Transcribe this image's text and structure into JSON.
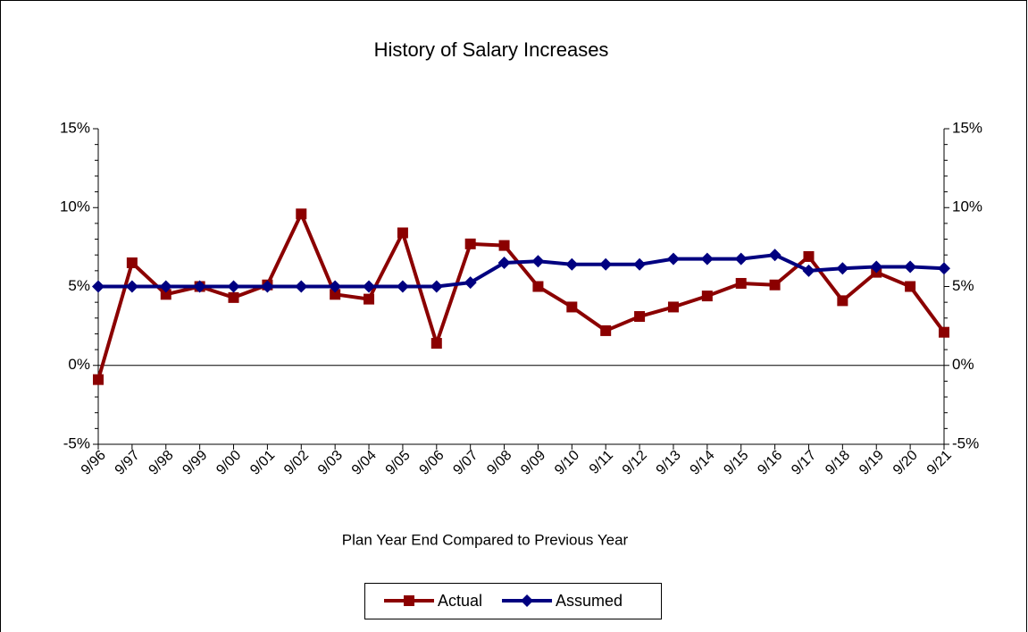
{
  "chart_data": {
    "type": "line",
    "title": "History of Salary Increases",
    "x_label": "Plan Year End Compared to Previous Year",
    "categories": [
      "9/96",
      "9/97",
      "9/98",
      "9/99",
      "9/00",
      "9/01",
      "9/02",
      "9/03",
      "9/04",
      "9/05",
      "9/06",
      "9/07",
      "9/08",
      "9/09",
      "9/10",
      "9/11",
      "9/12",
      "9/13",
      "9/14",
      "9/15",
      "9/16",
      "9/17",
      "9/18",
      "9/19",
      "9/20",
      "9/21"
    ],
    "series": [
      {
        "name": "Actual",
        "color": "#8b0000",
        "marker": "square",
        "values": [
          -0.9,
          6.5,
          4.5,
          5.0,
          4.3,
          5.1,
          9.6,
          4.5,
          4.2,
          8.4,
          1.4,
          7.7,
          7.6,
          5.0,
          3.7,
          2.2,
          3.1,
          3.7,
          4.4,
          5.2,
          5.1,
          6.9,
          4.1,
          5.9,
          5.0,
          2.1
        ]
      },
      {
        "name": "Assumed",
        "color": "#000080",
        "marker": "diamond",
        "values": [
          5.0,
          5.0,
          5.0,
          5.0,
          5.0,
          5.0,
          5.0,
          5.0,
          5.0,
          5.0,
          5.0,
          5.25,
          6.5,
          6.6,
          6.4,
          6.4,
          6.4,
          6.75,
          6.75,
          6.75,
          7.0,
          6.0,
          6.15,
          6.25,
          6.25,
          6.15
        ]
      }
    ],
    "ylim": [
      -5,
      15
    ],
    "yticks": [
      {
        "value": -5,
        "label": "-5%"
      },
      {
        "value": 0,
        "label": "0%"
      },
      {
        "value": 5,
        "label": "5%"
      },
      {
        "value": 10,
        "label": "10%"
      },
      {
        "value": 15,
        "label": "15%"
      }
    ],
    "y2lim": [
      -5,
      15
    ],
    "y2ticks": [
      {
        "value": -5,
        "label": "-5%"
      },
      {
        "value": 0,
        "label": "0%"
      },
      {
        "value": 5,
        "label": "5%"
      },
      {
        "value": 10,
        "label": "10%"
      },
      {
        "value": 15,
        "label": "15%"
      }
    ],
    "legend": "bottom"
  }
}
